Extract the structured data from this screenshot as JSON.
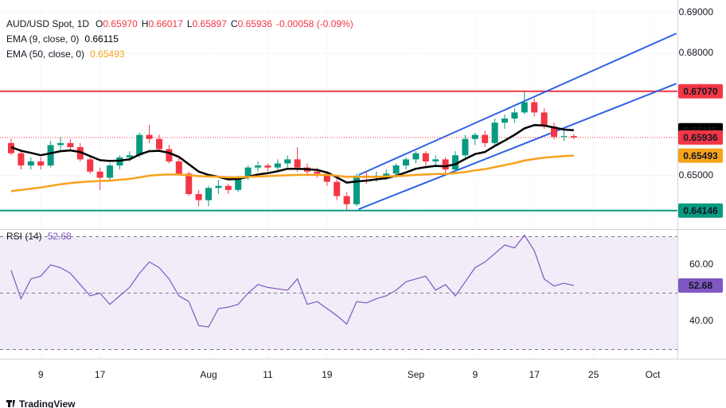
{
  "chart_data": [
    {
      "type": "candlestick",
      "title": "AUD/USD Spot, 1D",
      "ohlc_legend": [
        {
          "key": "O",
          "label": "0.65970"
        },
        {
          "key": "H",
          "label": "0.66017"
        },
        {
          "key": "L",
          "label": "0.65897"
        },
        {
          "key": "C",
          "label": "0.65936"
        }
      ],
      "change": "-0.00058 (-0.09%)",
      "categories": [
        null,
        null,
        null,
        "9",
        null,
        null,
        null,
        null,
        null,
        "17",
        null,
        null,
        null,
        null,
        null,
        null,
        null,
        null,
        null,
        null,
        "Aug",
        null,
        null,
        null,
        null,
        null,
        "11",
        null,
        null,
        null,
        null,
        null,
        "19",
        null,
        null,
        null,
        null,
        null,
        null,
        null,
        null,
        "Sep",
        null,
        null,
        null,
        null,
        null,
        "9",
        null,
        null,
        null,
        null,
        null,
        "17",
        null,
        null,
        null,
        null,
        null,
        "25",
        null,
        null,
        null,
        null,
        null,
        "Oct",
        null,
        null
      ],
      "open": [
        0.658,
        0.6555,
        0.6525,
        0.6535,
        0.6525,
        0.6575,
        0.658,
        0.657,
        0.654,
        0.651,
        0.6495,
        0.6525,
        0.6545,
        0.655,
        0.66,
        0.659,
        0.6565,
        0.6535,
        0.6505,
        0.6455,
        0.644,
        0.647,
        0.6475,
        0.6465,
        0.6495,
        0.652,
        0.6525,
        0.652,
        0.653,
        0.654,
        0.652,
        0.651,
        0.6505,
        0.6485,
        0.645,
        0.643,
        0.65,
        0.6495,
        0.65,
        0.6505,
        0.6525,
        0.654,
        0.6555,
        0.6535,
        0.654,
        0.6515,
        0.655,
        0.659,
        0.66,
        0.658,
        0.663,
        0.664,
        0.6655,
        0.668,
        0.6655,
        0.662,
        0.6595,
        0.6597,
        null,
        null,
        null,
        null,
        null,
        null,
        null,
        null,
        null,
        null
      ],
      "high": [
        0.659,
        0.6565,
        0.6545,
        0.6545,
        0.6585,
        0.6595,
        0.659,
        0.658,
        0.655,
        0.652,
        0.653,
        0.655,
        0.656,
        0.6605,
        0.6625,
        0.66,
        0.6575,
        0.6545,
        0.651,
        0.6465,
        0.6475,
        0.649,
        0.648,
        0.65,
        0.6525,
        0.6535,
        0.653,
        0.654,
        0.655,
        0.657,
        0.653,
        0.652,
        0.651,
        0.6495,
        0.646,
        0.6505,
        0.651,
        0.651,
        0.6515,
        0.653,
        0.6545,
        0.656,
        0.656,
        0.655,
        0.6545,
        0.656,
        0.66,
        0.6605,
        0.661,
        0.664,
        0.665,
        0.6665,
        0.6707,
        0.669,
        0.6665,
        0.663,
        0.6615,
        0.66017,
        null,
        null,
        null,
        null,
        null,
        null,
        null,
        null,
        null,
        null
      ],
      "low": [
        0.655,
        0.6515,
        0.6515,
        0.6515,
        0.652,
        0.656,
        0.656,
        0.6535,
        0.6505,
        0.6465,
        0.649,
        0.6515,
        0.6535,
        0.6545,
        0.658,
        0.656,
        0.653,
        0.65,
        0.645,
        0.6425,
        0.6425,
        0.6455,
        0.6455,
        0.646,
        0.649,
        0.651,
        0.651,
        0.651,
        0.652,
        0.651,
        0.65,
        0.6495,
        0.6475,
        0.644,
        0.6415,
        0.6425,
        0.648,
        0.6485,
        0.649,
        0.6495,
        0.6515,
        0.653,
        0.6525,
        0.6525,
        0.6505,
        0.651,
        0.6545,
        0.6575,
        0.657,
        0.6575,
        0.6615,
        0.663,
        0.665,
        0.6645,
        0.6615,
        0.659,
        0.6585,
        0.65897,
        null,
        null,
        null,
        null,
        null,
        null,
        null,
        null,
        null,
        null
      ],
      "close": [
        0.6555,
        0.6525,
        0.6535,
        0.6525,
        0.6575,
        0.658,
        0.657,
        0.654,
        0.651,
        0.6495,
        0.6525,
        0.6545,
        0.655,
        0.66,
        0.659,
        0.6565,
        0.6535,
        0.6505,
        0.6455,
        0.644,
        0.647,
        0.6475,
        0.6465,
        0.6495,
        0.652,
        0.6525,
        0.652,
        0.653,
        0.654,
        0.652,
        0.651,
        0.6505,
        0.6485,
        0.645,
        0.643,
        0.65,
        0.6495,
        0.65,
        0.6505,
        0.6525,
        0.654,
        0.6555,
        0.6535,
        0.654,
        0.6515,
        0.655,
        0.659,
        0.66,
        0.658,
        0.663,
        0.664,
        0.6655,
        0.668,
        0.6655,
        0.662,
        0.6595,
        0.6597,
        0.65936,
        null,
        null,
        null,
        null,
        null,
        null,
        null,
        null,
        null,
        null
      ],
      "up_color": "#089981",
      "down_color": "#f23645",
      "series": [
        {
          "name": "EMA (9, close, 0)",
          "color": "#000000",
          "last_label": "0.66115",
          "values": [
            0.657,
            0.6561,
            0.6556,
            0.655,
            0.6555,
            0.656,
            0.6562,
            0.6558,
            0.6548,
            0.6538,
            0.6536,
            0.6537,
            0.654,
            0.6552,
            0.656,
            0.6561,
            0.6556,
            0.6546,
            0.6528,
            0.651,
            0.6502,
            0.6497,
            0.6491,
            0.6492,
            0.6497,
            0.6503,
            0.6506,
            0.6511,
            0.6517,
            0.6517,
            0.6516,
            0.6514,
            0.6508,
            0.6496,
            0.6483,
            0.6486,
            0.6488,
            0.6491,
            0.6494,
            0.65,
            0.6508,
            0.6517,
            0.6521,
            0.6524,
            0.6523,
            0.6528,
            0.6541,
            0.6553,
            0.6558,
            0.6573,
            0.6586,
            0.66,
            0.6616,
            0.6624,
            0.6623,
            0.6618,
            0.6613,
            0.66115,
            null,
            null,
            null,
            null,
            null,
            null,
            null,
            null,
            null,
            null
          ]
        },
        {
          "name": "EMA (50, close, 0)",
          "color": "#f7a21b",
          "last_label": "0.65493",
          "values": [
            0.6462,
            0.6465,
            0.6468,
            0.6471,
            0.6475,
            0.6479,
            0.6482,
            0.6484,
            0.6486,
            0.6487,
            0.6488,
            0.649,
            0.6492,
            0.6496,
            0.65,
            0.6502,
            0.6503,
            0.6503,
            0.6501,
            0.6499,
            0.6498,
            0.6497,
            0.6496,
            0.6496,
            0.6497,
            0.6498,
            0.6499,
            0.65,
            0.6501,
            0.6502,
            0.6502,
            0.6502,
            0.6502,
            0.65,
            0.6497,
            0.6497,
            0.6497,
            0.6497,
            0.6498,
            0.6499,
            0.65,
            0.6502,
            0.6503,
            0.6504,
            0.6504,
            0.6506,
            0.6509,
            0.6513,
            0.6516,
            0.6521,
            0.6526,
            0.6531,
            0.6537,
            0.6541,
            0.6544,
            0.6546,
            0.6548,
            0.65493,
            null,
            null,
            null,
            null,
            null,
            null,
            null,
            null,
            null,
            null
          ]
        }
      ],
      "last_price": {
        "value": 0.65936,
        "label": "0.65936",
        "color": "#f23645"
      },
      "hlines": [
        {
          "value": 0.6707,
          "label": "0.67070",
          "color": "#f23645"
        },
        {
          "value": 0.64146,
          "label": "0.64146",
          "color": "#089981"
        }
      ],
      "trendlines": [
        {
          "color": "#2f62e8",
          "x": [
            35.2,
            67.4
          ],
          "y": [
            0.65018,
            0.68487
          ]
        },
        {
          "color": "#2f62e8",
          "x": [
            35.2,
            67.4
          ],
          "y": [
            0.64179,
            0.67259
          ]
        }
      ],
      "ylim": [
        0.63809,
        0.69111
      ],
      "yticks": [
        {
          "value": 0.65,
          "label": "0.65000"
        },
        {
          "value": 0.68,
          "label": "0.68000"
        },
        {
          "value": 0.69,
          "label": "0.69000"
        }
      ],
      "source": "TradingView"
    },
    {
      "type": "line",
      "title": "RSI (14)",
      "series": [
        {
          "name": "RSI",
          "color": "#7e57c2",
          "last_label": "52.68",
          "values": [
            58,
            48,
            55,
            56,
            60,
            59,
            57,
            53,
            49,
            50,
            46,
            49,
            52,
            57,
            61,
            59,
            55,
            49,
            47,
            38.5,
            38,
            44.5,
            45,
            46,
            50,
            53,
            52,
            51.5,
            51,
            55,
            46,
            47,
            44.5,
            42,
            39,
            47,
            46.5,
            48,
            49,
            51,
            54,
            55,
            56,
            51,
            53,
            49,
            54,
            59,
            61,
            64,
            67,
            66,
            70.5,
            65,
            55,
            52.5,
            53.5,
            52.68,
            null,
            null,
            null,
            null,
            null,
            null,
            null,
            null,
            null,
            null
          ]
        }
      ],
      "bands": [
        30,
        50,
        70
      ],
      "band_color": "#ede7f6",
      "ylim": [
        27.04,
        72.11
      ],
      "yticks": [
        {
          "value": 40,
          "label": "40.00"
        },
        {
          "value": 60,
          "label": "60.00"
        }
      ]
    }
  ]
}
